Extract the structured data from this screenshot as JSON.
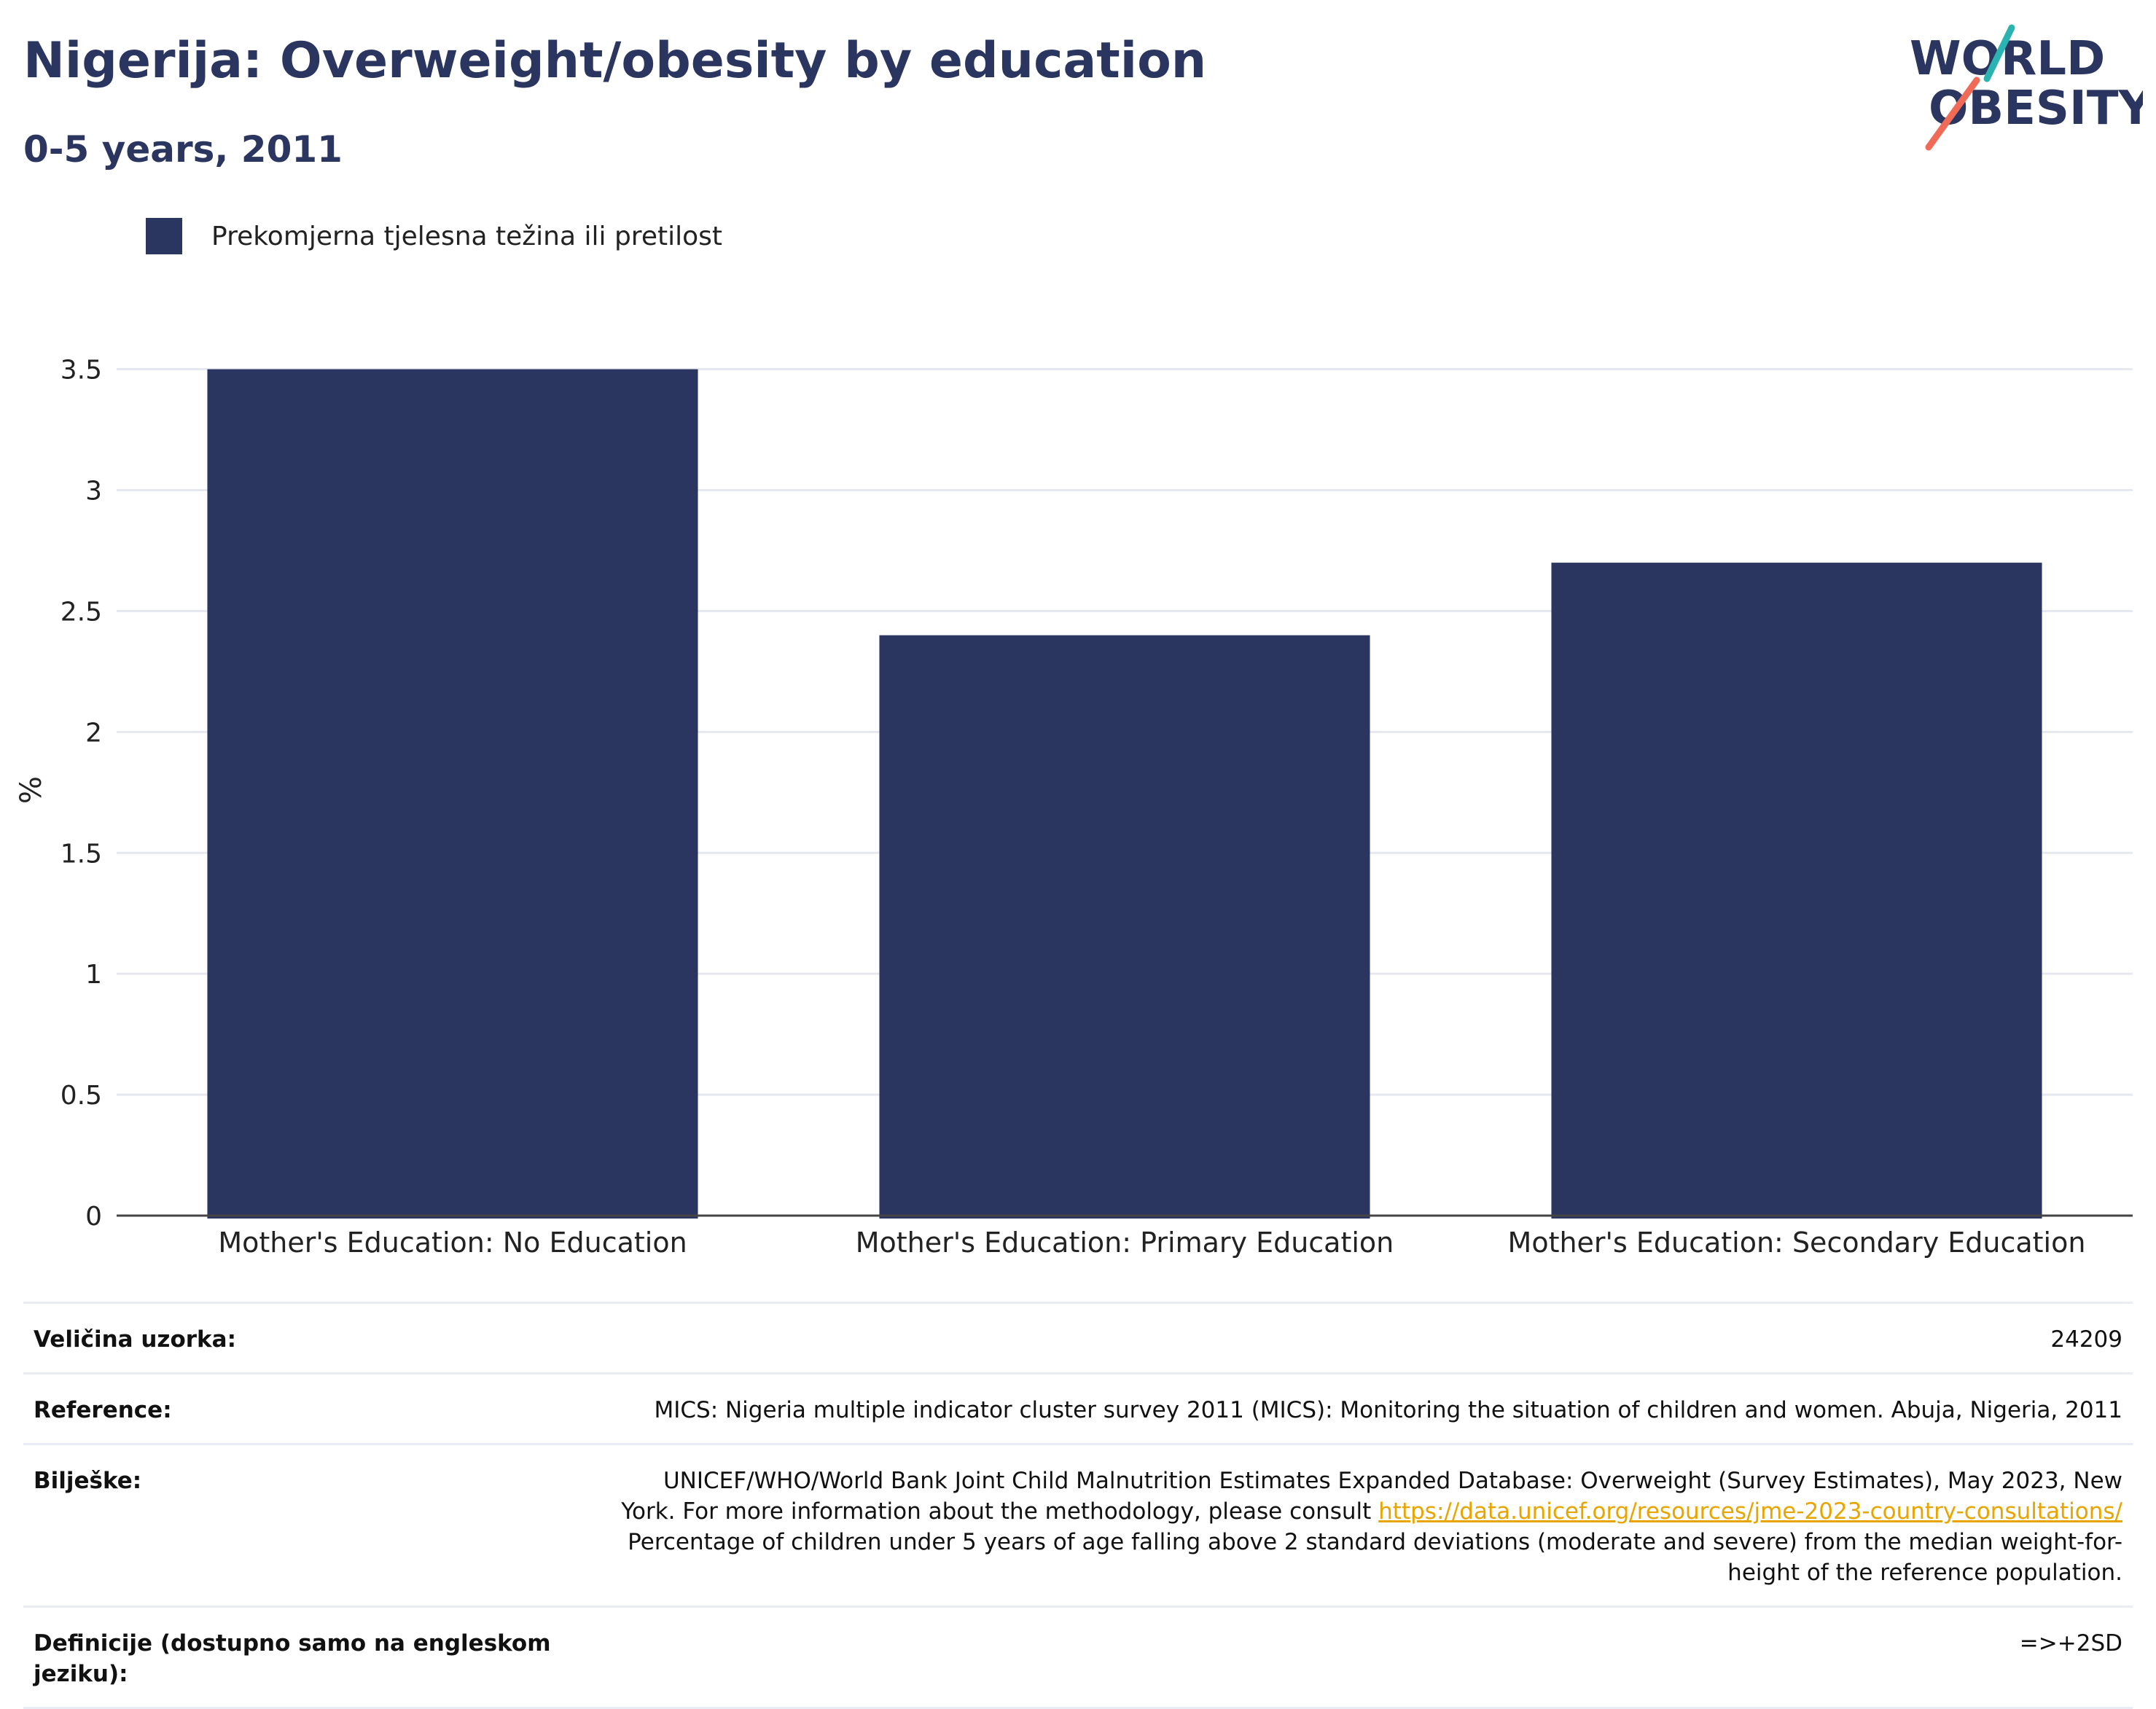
{
  "header": {
    "title": "Nigerija: Overweight/obesity by education",
    "subtitle": "0-5 years, 2011"
  },
  "logo": {
    "line1": "WORLD",
    "line2": "OBESITY"
  },
  "legend": {
    "label": "Prekomjerna tjelesna težina ili pretilost",
    "color": "#2a3560"
  },
  "chart_data": {
    "type": "bar",
    "categories": [
      "Mother's Education: No Education",
      "Mother's Education: Primary Education",
      "Mother's Education: Secondary Education"
    ],
    "series": [
      {
        "name": "Prekomjerna tjelesna težina ili pretilost",
        "values": [
          3.5,
          2.4,
          2.7
        ],
        "color": "#2a3560"
      }
    ],
    "ylabel": "%",
    "ylim": [
      0,
      3.5
    ],
    "yticks": [
      "0",
      "0.5",
      "1",
      "1.5",
      "2",
      "2.5",
      "3",
      "3.5"
    ],
    "grid": true,
    "legend_position": "top-left"
  },
  "info": {
    "sample_size_label": "Veličina uzorka:",
    "sample_size_value": "24209",
    "reference_label": "Reference:",
    "reference_value": "MICS: Nigeria multiple indicator cluster survey 2011 (MICS): Monitoring the situation of children and women. Abuja, Nigeria, 2011",
    "notes_label": "Bilješke:",
    "notes_text_1": "UNICEF/WHO/World Bank Joint Child Malnutrition Estimates Expanded Database: Overweight (Survey Estimates), May 2023, New York. For more information about the methodology, please consult",
    "notes_link": "https://data.unicef.org/resources/jme-2023-country-consultations/",
    "notes_text_2": "Percentage of children under 5 years of age falling above 2 standard deviations (moderate and severe) from the median weight-for-height of the reference population.",
    "definitions_label": "Definicije (dostupno samo na engleskom jeziku):",
    "definitions_value": "=>+2SD"
  }
}
